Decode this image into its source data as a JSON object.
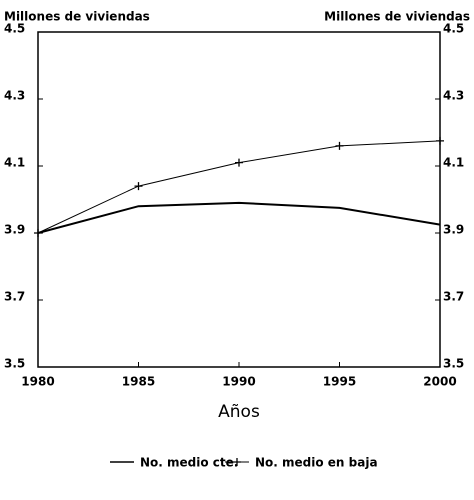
{
  "chart_data": {
    "type": "line",
    "ylabel": "Millones de viviendas",
    "y2label": "Millones de viviendas",
    "xlabel": "Años",
    "x": [
      1980,
      1985,
      1990,
      1995,
      2000
    ],
    "xlim": [
      1980,
      2000
    ],
    "xticks": [
      1980,
      1985,
      1990,
      1995,
      2000
    ],
    "ylim": [
      3.5,
      4.5
    ],
    "yticks": [
      3.5,
      3.7,
      3.9,
      4.1,
      4.3,
      4.5
    ],
    "y2lim": [
      3.5,
      4.5
    ],
    "y2ticks": [
      3.5,
      3.7,
      3.9,
      4.1,
      4.3,
      4.5
    ],
    "series": [
      {
        "name": "No. medio cte.",
        "color": "#000000",
        "values": [
          3.9,
          3.98,
          3.99,
          3.975,
          3.925
        ]
      },
      {
        "name": "No. medio en baja",
        "color": "#000000",
        "marker": "+",
        "values": [
          3.9,
          4.04,
          4.11,
          4.16,
          4.175
        ]
      }
    ]
  }
}
